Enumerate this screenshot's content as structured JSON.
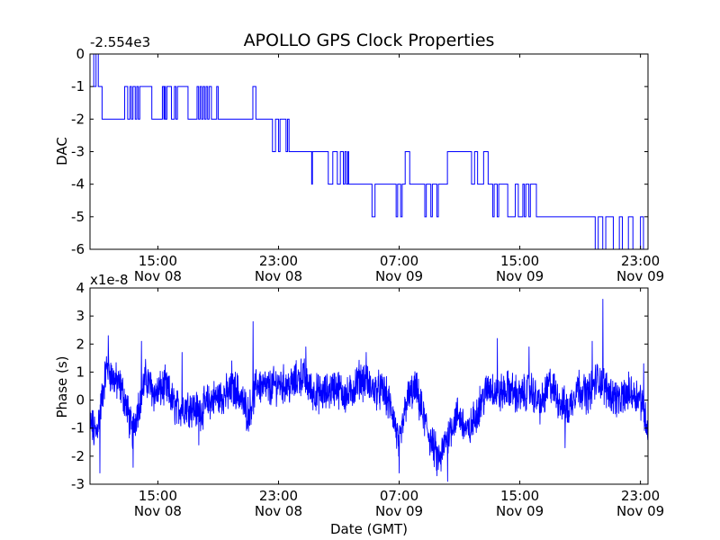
{
  "chart_data": [
    {
      "type": "line",
      "title": "APOLLO GPS Clock Properties",
      "ylabel": "DAC",
      "xlabel": "",
      "offset_text": "-2.554e3",
      "color": "#0000ff",
      "xlim": [
        10.5,
        47.5
      ],
      "ylim": [
        -6,
        0
      ],
      "yticks": [
        0,
        -1,
        -2,
        -3,
        -4,
        -5,
        -6
      ],
      "ytick_labels": [
        "0",
        "-1",
        "-2",
        "-3",
        "-4",
        "-5",
        "-6"
      ],
      "xticks": [
        {
          "x": 15,
          "time": "15:00",
          "date": "Nov 08"
        },
        {
          "x": 23,
          "time": "23:00",
          "date": "Nov 08"
        },
        {
          "x": 31,
          "time": "07:00",
          "date": "Nov 09"
        },
        {
          "x": 39,
          "time": "15:00",
          "date": "Nov 09"
        },
        {
          "x": 47,
          "time": "23:00",
          "date": "Nov 09"
        }
      ],
      "series": [
        {
          "name": "DAC",
          "steps": [
            [
              10.5,
              0
            ],
            [
              10.75,
              -1
            ],
            [
              10.9,
              0
            ],
            [
              11.05,
              -1
            ],
            [
              11.3,
              -2
            ],
            [
              12.8,
              -1
            ],
            [
              13.0,
              -2
            ],
            [
              13.15,
              -1
            ],
            [
              13.25,
              -2
            ],
            [
              13.35,
              -1
            ],
            [
              13.5,
              -2
            ],
            [
              13.6,
              -1
            ],
            [
              13.7,
              -2
            ],
            [
              13.8,
              -1
            ],
            [
              14.55,
              -1
            ],
            [
              14.6,
              -2
            ],
            [
              15.3,
              -1
            ],
            [
              15.4,
              -2
            ],
            [
              15.45,
              -1
            ],
            [
              15.5,
              -2
            ],
            [
              15.6,
              -1
            ],
            [
              15.9,
              -2
            ],
            [
              16.1,
              -1
            ],
            [
              16.2,
              -2
            ],
            [
              16.3,
              -1
            ],
            [
              17.0,
              -2
            ],
            [
              17.6,
              -1
            ],
            [
              17.7,
              -2
            ],
            [
              17.8,
              -1
            ],
            [
              17.9,
              -2
            ],
            [
              18.0,
              -1
            ],
            [
              18.1,
              -2
            ],
            [
              18.2,
              -1
            ],
            [
              18.3,
              -2
            ],
            [
              18.4,
              -1
            ],
            [
              18.55,
              -2
            ],
            [
              18.9,
              -1
            ],
            [
              19.0,
              -2
            ],
            [
              21.3,
              -1
            ],
            [
              21.5,
              -2
            ],
            [
              22.6,
              -3
            ],
            [
              22.8,
              -2
            ],
            [
              23.0,
              -3
            ],
            [
              23.1,
              -2
            ],
            [
              23.5,
              -3
            ],
            [
              23.6,
              -2
            ],
            [
              23.7,
              -3
            ],
            [
              25.1,
              -3
            ],
            [
              25.2,
              -4
            ],
            [
              25.25,
              -3
            ],
            [
              26.3,
              -4
            ],
            [
              26.6,
              -3
            ],
            [
              26.9,
              -4
            ],
            [
              27.1,
              -3
            ],
            [
              27.3,
              -4
            ],
            [
              27.4,
              -3
            ],
            [
              27.5,
              -4
            ],
            [
              27.6,
              -3
            ],
            [
              27.65,
              -4
            ],
            [
              27.8,
              -4
            ],
            [
              28.7,
              -4
            ],
            [
              29.2,
              -5
            ],
            [
              29.4,
              -4
            ],
            [
              30.8,
              -5
            ],
            [
              30.9,
              -4
            ],
            [
              31.1,
              -5
            ],
            [
              31.2,
              -4
            ],
            [
              31.4,
              -3
            ],
            [
              31.7,
              -4
            ],
            [
              32.5,
              -4
            ],
            [
              32.7,
              -5
            ],
            [
              32.8,
              -4
            ],
            [
              33.1,
              -5
            ],
            [
              33.2,
              -4
            ],
            [
              33.5,
              -5
            ],
            [
              33.6,
              -4
            ],
            [
              34.2,
              -3
            ],
            [
              35.8,
              -4
            ],
            [
              36.0,
              -3
            ],
            [
              36.2,
              -4
            ],
            [
              36.6,
              -3
            ],
            [
              36.9,
              -4
            ],
            [
              37.2,
              -5
            ],
            [
              37.3,
              -4
            ],
            [
              37.5,
              -5
            ],
            [
              37.6,
              -4
            ],
            [
              38.2,
              -5
            ],
            [
              38.7,
              -4
            ],
            [
              38.9,
              -5
            ],
            [
              39.2,
              -4
            ],
            [
              39.3,
              -5
            ],
            [
              39.4,
              -4
            ],
            [
              39.6,
              -5
            ],
            [
              39.7,
              -4
            ],
            [
              40.1,
              -5
            ],
            [
              44.0,
              -6
            ],
            [
              44.2,
              -5
            ],
            [
              44.5,
              -6
            ],
            [
              44.7,
              -5
            ],
            [
              45.2,
              -6
            ],
            [
              45.6,
              -5
            ],
            [
              45.8,
              -6
            ],
            [
              46.2,
              -5
            ],
            [
              46.5,
              -6
            ],
            [
              47.0,
              -5
            ],
            [
              47.2,
              -6
            ],
            [
              47.5,
              -6
            ]
          ]
        }
      ]
    },
    {
      "type": "line",
      "title": "",
      "ylabel": "Phase (s)",
      "xlabel": "Date (GMT)",
      "offset_text": "x1e-8",
      "color": "#0000ff",
      "xlim": [
        10.5,
        47.5
      ],
      "ylim": [
        -3,
        4
      ],
      "yticks": [
        4,
        3,
        2,
        1,
        0,
        -1,
        -2,
        -3
      ],
      "ytick_labels": [
        "4",
        "3",
        "2",
        "1",
        "0",
        "-1",
        "-2",
        "-3"
      ],
      "xticks": [
        {
          "x": 15,
          "time": "15:00",
          "date": "Nov 08"
        },
        {
          "x": 23,
          "time": "23:00",
          "date": "Nov 08"
        },
        {
          "x": 31,
          "time": "07:00",
          "date": "Nov 09"
        },
        {
          "x": 39,
          "time": "15:00",
          "date": "Nov 09"
        },
        {
          "x": 47,
          "time": "23:00",
          "date": "Nov 09"
        }
      ],
      "series": [
        {
          "name": "Phase",
          "trend": [
            [
              10.5,
              -0.8
            ],
            [
              10.9,
              -1.2
            ],
            [
              11.2,
              -0.3
            ],
            [
              11.6,
              1.2
            ],
            [
              12.0,
              0.8
            ],
            [
              12.6,
              0.4
            ],
            [
              13.0,
              -0.4
            ],
            [
              13.3,
              -1.2
            ],
            [
              13.7,
              -0.2
            ],
            [
              14.2,
              0.8
            ],
            [
              14.8,
              0.2
            ],
            [
              15.5,
              0.5
            ],
            [
              16.2,
              -0.3
            ],
            [
              17.0,
              -0.2
            ],
            [
              17.8,
              -0.4
            ],
            [
              18.5,
              0.0
            ],
            [
              19.5,
              0.2
            ],
            [
              20.2,
              0.4
            ],
            [
              21.0,
              -0.5
            ],
            [
              21.6,
              0.6
            ],
            [
              22.3,
              0.4
            ],
            [
              23.0,
              0.6
            ],
            [
              23.8,
              0.5
            ],
            [
              24.6,
              0.9
            ],
            [
              25.2,
              0.3
            ],
            [
              26.0,
              0.2
            ],
            [
              26.8,
              0.5
            ],
            [
              27.6,
              0.1
            ],
            [
              28.4,
              0.8
            ],
            [
              29.2,
              0.4
            ],
            [
              30.0,
              0.3
            ],
            [
              30.6,
              -0.5
            ],
            [
              31.0,
              -1.7
            ],
            [
              31.5,
              0.0
            ],
            [
              32.1,
              0.4
            ],
            [
              32.6,
              -0.6
            ],
            [
              33.2,
              -1.6
            ],
            [
              33.7,
              -2.2
            ],
            [
              34.2,
              -1.2
            ],
            [
              34.9,
              -0.5
            ],
            [
              35.6,
              -1.2
            ],
            [
              36.3,
              -0.2
            ],
            [
              37.0,
              0.5
            ],
            [
              37.6,
              0.2
            ],
            [
              38.3,
              0.4
            ],
            [
              39.0,
              0.1
            ],
            [
              39.7,
              0.4
            ],
            [
              40.4,
              -0.2
            ],
            [
              41.0,
              0.6
            ],
            [
              41.6,
              0.0
            ],
            [
              42.2,
              -0.4
            ],
            [
              42.8,
              0.5
            ],
            [
              43.5,
              0.2
            ],
            [
              44.2,
              0.8
            ],
            [
              44.9,
              0.3
            ],
            [
              45.6,
              0.0
            ],
            [
              46.3,
              0.3
            ],
            [
              47.0,
              0.1
            ],
            [
              47.5,
              -1.0
            ]
          ],
          "spikes": [
            [
              10.75,
              -1.6
            ],
            [
              11.15,
              -2.6
            ],
            [
              11.7,
              2.3
            ],
            [
              13.35,
              -2.4
            ],
            [
              13.9,
              2.1
            ],
            [
              16.6,
              1.7
            ],
            [
              17.7,
              -1.6
            ],
            [
              19.9,
              1.4
            ],
            [
              21.3,
              2.8
            ],
            [
              24.8,
              1.9
            ],
            [
              28.8,
              1.7
            ],
            [
              31.0,
              -2.6
            ],
            [
              33.5,
              -2.7
            ],
            [
              34.2,
              -2.9
            ],
            [
              37.5,
              2.2
            ],
            [
              39.6,
              1.9
            ],
            [
              42.0,
              -1.7
            ],
            [
              43.8,
              2.1
            ],
            [
              44.5,
              3.6
            ],
            [
              45.6,
              0.4
            ],
            [
              47.2,
              1.3
            ],
            [
              47.45,
              -1.3
            ]
          ]
        }
      ]
    }
  ]
}
